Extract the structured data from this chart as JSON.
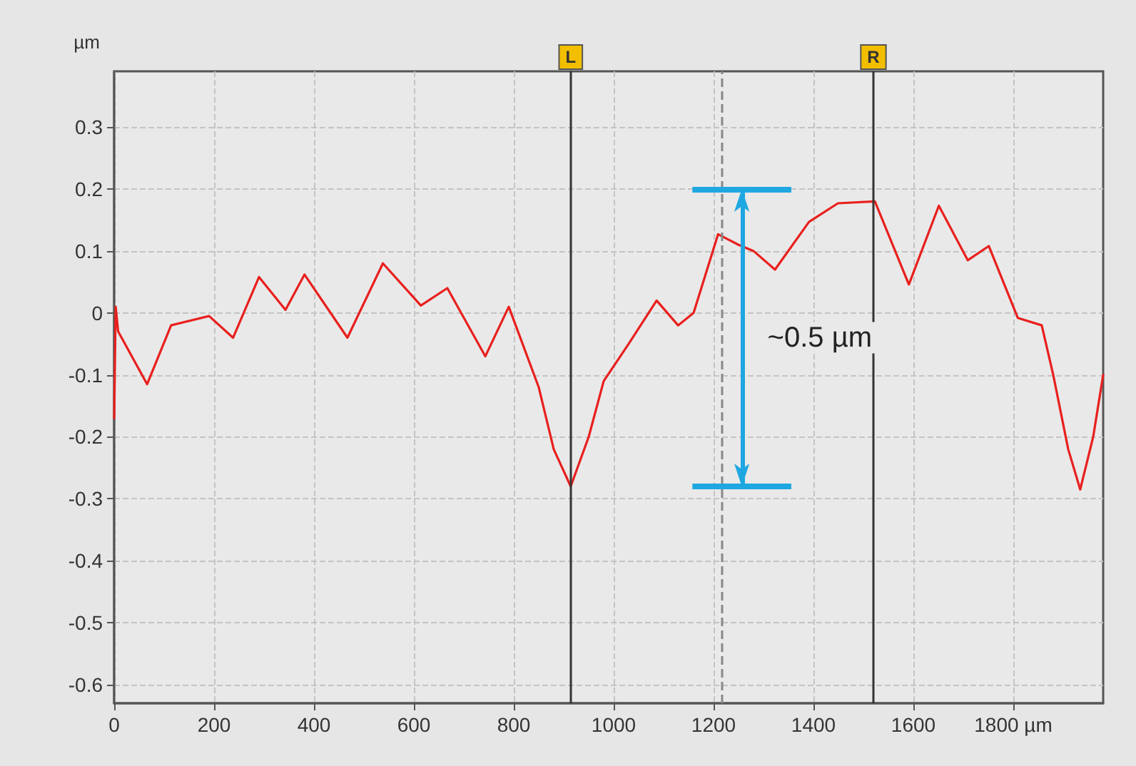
{
  "chart_data": {
    "type": "line",
    "ylabel": "µm",
    "x": [
      0,
      3,
      8,
      66,
      114,
      190,
      238,
      290,
      343,
      381,
      467,
      538,
      614,
      667,
      743,
      790,
      850,
      880,
      914,
      950,
      980,
      1030,
      1086,
      1129,
      1160,
      1209,
      1250,
      1280,
      1323,
      1391,
      1449,
      1523,
      1591,
      1651,
      1709,
      1751,
      1809,
      1857,
      1880,
      1910,
      1934,
      1960,
      1980
    ],
    "series": [
      {
        "color": "#e8201e",
        "values": [
          -0.17,
          0.01,
          -0.03,
          -0.115,
          -0.02,
          -0.005,
          -0.04,
          0.058,
          0.005,
          0.062,
          -0.04,
          0.08,
          0.012,
          0.04,
          -0.07,
          0.01,
          -0.12,
          -0.22,
          -0.28,
          -0.2,
          -0.11,
          -0.05,
          0.02,
          -0.02,
          0.0,
          0.127,
          0.11,
          0.1,
          0.07,
          0.147,
          0.177,
          0.18,
          0.046,
          0.173,
          0.085,
          0.108,
          -0.008,
          -0.02,
          -0.1,
          -0.22,
          -0.285,
          -0.2,
          -0.1
        ]
      }
    ],
    "xlim": [
      0,
      1980
    ],
    "xticks": [
      0,
      200,
      400,
      600,
      800,
      1000,
      1200,
      1400,
      1600,
      {
        "value": 1800,
        "label": "1800 µm"
      }
    ],
    "ylim": [
      -0.63,
      0.39
    ],
    "yticks": [
      -0.6,
      -0.5,
      -0.4,
      -0.3,
      -0.2,
      -0.1,
      0,
      0.1,
      0.2,
      0.3
    ],
    "grid": true,
    "line_style": "solid",
    "ref_lines": [
      {
        "axis": "x",
        "value": 914,
        "label": "L",
        "color": "#333333",
        "line_style": "solid"
      },
      {
        "axis": "x",
        "value": 1520,
        "label": "R",
        "color": "#333333",
        "line_style": "solid"
      },
      {
        "axis": "x",
        "value": 1217,
        "label": null,
        "color": "#888888",
        "line_style": "dashed"
      },
      {
        "axis": "y",
        "value": 0.2,
        "label": null,
        "color": "#1ea7e1",
        "line_style": "solid"
      },
      {
        "axis": "y",
        "value": -0.28,
        "label": null,
        "color": "#1ea7e1",
        "line_style": "solid"
      }
    ],
    "annotations": [
      "~0.5 µm"
    ]
  }
}
